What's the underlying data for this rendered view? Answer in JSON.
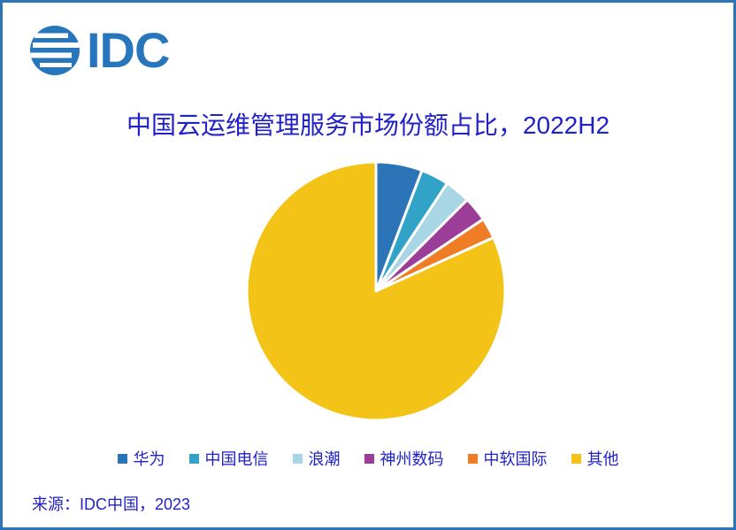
{
  "page": {
    "border_color": "#2E75B6",
    "background_color": "#FFFFFF",
    "text_color": "#2121C8"
  },
  "logo": {
    "text": "IDC",
    "color": "#2776BB"
  },
  "source": {
    "label": "来源：IDC中国，2023"
  },
  "chart_data": {
    "type": "pie",
    "title": "中国云运维管理服务市场份额占比，2022H2",
    "categories": [
      "华为",
      "中国电信",
      "浪潮",
      "神州数码",
      "中软国际",
      "其他"
    ],
    "values_percent": [
      5.8,
      3.5,
      3.2,
      3.1,
      2.6,
      81.8
    ],
    "colors": [
      "#2B74B8",
      "#31A3C6",
      "#A9D6E5",
      "#9C3D97",
      "#EF7D26",
      "#F3C317"
    ],
    "start_angle": "12-o-clock-clockwise",
    "slice_gap_color": "#FFFFFF",
    "legend_position": "bottom",
    "data_labels_shown": false
  }
}
